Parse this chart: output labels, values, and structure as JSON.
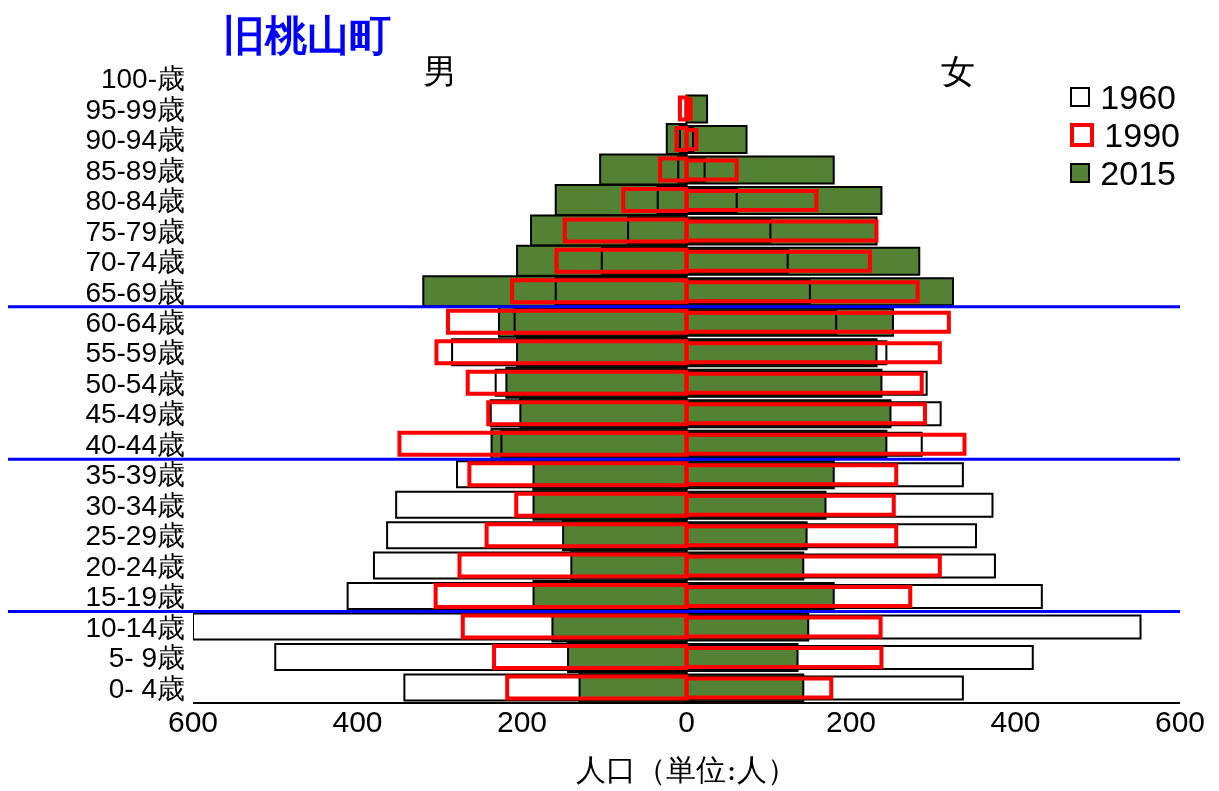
{
  "chart_data": {
    "type": "bar",
    "orientation": "horizontal",
    "title": "旧桃山町",
    "xlabel": "人口（単位:人）",
    "annotations": [
      "男",
      "女"
    ],
    "categories": [
      "100-歳",
      "95-99歳",
      "90-94歳",
      "85-89歳",
      "80-84歳",
      "75-79歳",
      "70-74歳",
      "65-69歳",
      "60-64歳",
      "55-59歳",
      "50-54歳",
      "45-49歳",
      "40-44歳",
      "35-39歳",
      "30-34歳",
      "25-29歳",
      "20-24歳",
      "15-19歳",
      "10-14歳",
      "5-  9歳",
      "0-  4歳"
    ],
    "series": [
      {
        "name": "2015",
        "color": "#548235",
        "values": [
          null,
          null,
          -24,
          -105,
          -159,
          -189,
          -206,
          -320,
          -228,
          -206,
          -219,
          -202,
          -237,
          -186,
          -186,
          -150,
          -140,
          -186,
          -163,
          -144,
          -130
        ]
      },
      {
        "color": "#548235",
        "values": [
          null,
          25,
          73,
          179,
          237,
          231,
          283,
          324,
          251,
          231,
          237,
          248,
          243,
          179,
          169,
          146,
          142,
          179,
          148,
          135,
          142
        ]
      },
      {
        "name": "1960",
        "color": "#000000",
        "values": [
          null,
          null,
          -8,
          -10,
          -35,
          -71,
          -103,
          -159,
          -209,
          -285,
          -232,
          -238,
          -225,
          -279,
          -353,
          -364,
          -380,
          -412,
          -600,
          -500,
          -343
        ]
      },
      {
        "color": "#000000",
        "values": [
          null,
          null,
          8,
          22,
          61,
          102,
          123,
          150,
          182,
          243,
          292,
          309,
          286,
          336,
          372,
          352,
          375,
          432,
          552,
          421,
          336
        ]
      },
      {
        "name": "1990",
        "color": "#ff0000",
        "values": [
          null,
          -8,
          -12,
          -32,
          -77,
          -148,
          -158,
          -212,
          -290,
          -304,
          -266,
          -241,
          -349,
          -264,
          -207,
          -243,
          -276,
          -305,
          -272,
          -234,
          -218
        ]
      },
      {
        "color": "#ff0000",
        "values": [
          null,
          5,
          12,
          61,
          158,
          231,
          223,
          281,
          319,
          308,
          286,
          290,
          338,
          255,
          252,
          255,
          308,
          272,
          236,
          237,
          176
        ]
      }
    ],
    "xlim": [
      -600,
      600
    ],
    "xticks": [
      {
        "value": -600,
        "label": "600"
      },
      {
        "value": -400,
        "label": "400"
      },
      {
        "value": -200,
        "label": "200"
      },
      0,
      200,
      400,
      600
    ],
    "ref_lines": [
      {
        "axis": "y",
        "value": "65-69歳",
        "color": "#0000ff"
      },
      {
        "axis": "y",
        "value": "40-44歳",
        "color": "#0000ff"
      },
      {
        "axis": "y",
        "value": "15-19歳",
        "color": "#0000ff"
      }
    ],
    "legend": "top right"
  }
}
